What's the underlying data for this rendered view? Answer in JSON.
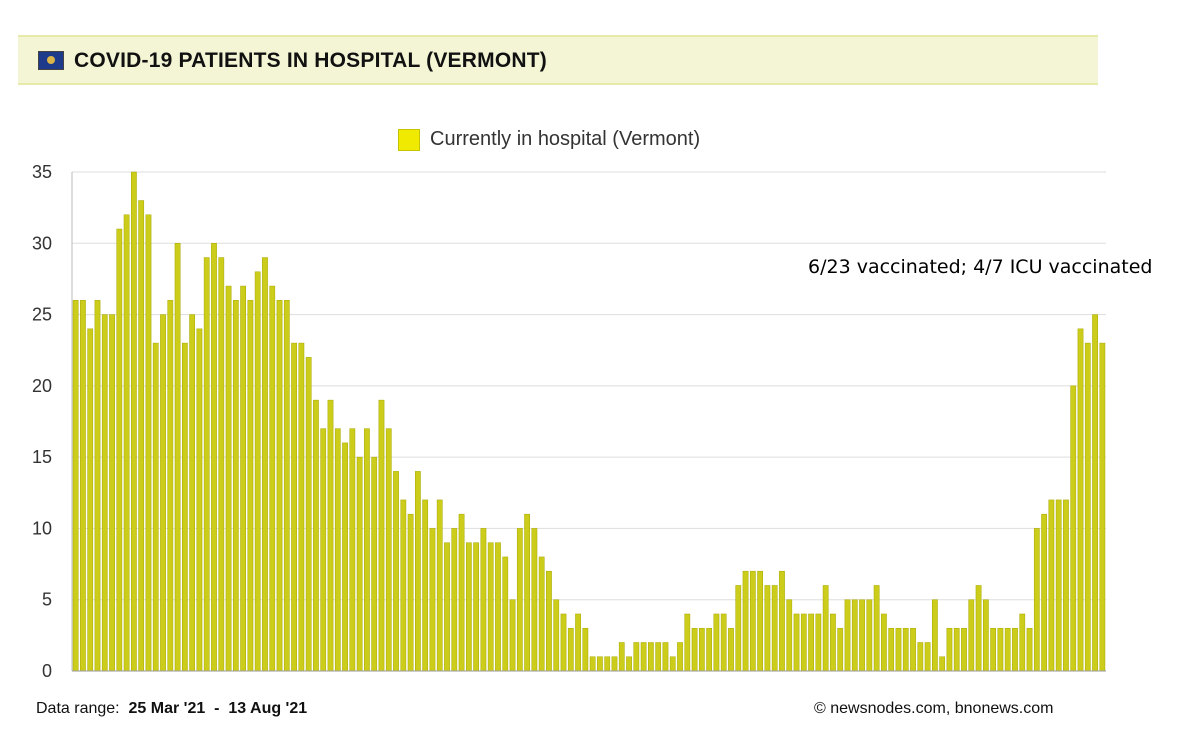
{
  "header": {
    "title": "COVID-19 PATIENTS IN HOSPITAL (VERMONT)",
    "flag_icon": "vermont-flag-icon"
  },
  "annotation": "6/23 vaccinated; 4/7 ICU vaccinated",
  "footer": {
    "range_label": "Data range:",
    "range_start": "25 Mar '21",
    "range_sep": "-",
    "range_end": "13 Aug '21",
    "credit": "© newsnodes.com, bnonews.com"
  },
  "colors": {
    "bar_fill": "#cccc1a",
    "bar_stroke": "#a8a800",
    "legend_swatch": "#f0ea00",
    "header_bg": "#f4f5d4",
    "grid": "#dddddd"
  },
  "chart_data": {
    "type": "bar",
    "legend": [
      {
        "name": "Currently in hospital (Vermont)"
      }
    ],
    "series": [
      {
        "name": "Currently in hospital (Vermont)",
        "values": [
          26,
          26,
          24,
          26,
          25,
          25,
          31,
          32,
          35,
          33,
          32,
          23,
          25,
          26,
          30,
          23,
          25,
          24,
          29,
          30,
          29,
          27,
          26,
          27,
          26,
          28,
          29,
          27,
          26,
          26,
          23,
          23,
          22,
          19,
          17,
          19,
          17,
          16,
          17,
          15,
          17,
          15,
          19,
          17,
          14,
          12,
          11,
          14,
          12,
          10,
          12,
          9,
          10,
          11,
          9,
          9,
          10,
          9,
          9,
          8,
          5,
          10,
          11,
          10,
          8,
          7,
          5,
          4,
          3,
          4,
          3,
          1,
          1,
          1,
          1,
          2,
          1,
          2,
          2,
          2,
          2,
          2,
          1,
          2,
          4,
          3,
          3,
          3,
          4,
          4,
          3,
          6,
          7,
          7,
          7,
          6,
          6,
          7,
          5,
          4,
          4,
          4,
          4,
          6,
          4,
          3,
          5,
          5,
          5,
          5,
          6,
          4,
          3,
          3,
          3,
          3,
          2,
          2,
          5,
          1,
          3,
          3,
          3,
          5,
          6,
          5,
          3,
          3,
          3,
          3,
          4,
          3,
          10,
          11,
          12,
          12,
          12,
          20,
          24,
          23,
          25,
          23
        ]
      }
    ],
    "x_range": [
      "25 Mar '21",
      "13 Aug '21"
    ],
    "ylim": [
      0,
      35
    ],
    "yticks": [
      0,
      5,
      10,
      15,
      20,
      25,
      30,
      35
    ],
    "grid": true,
    "legend_position": "top-center"
  }
}
